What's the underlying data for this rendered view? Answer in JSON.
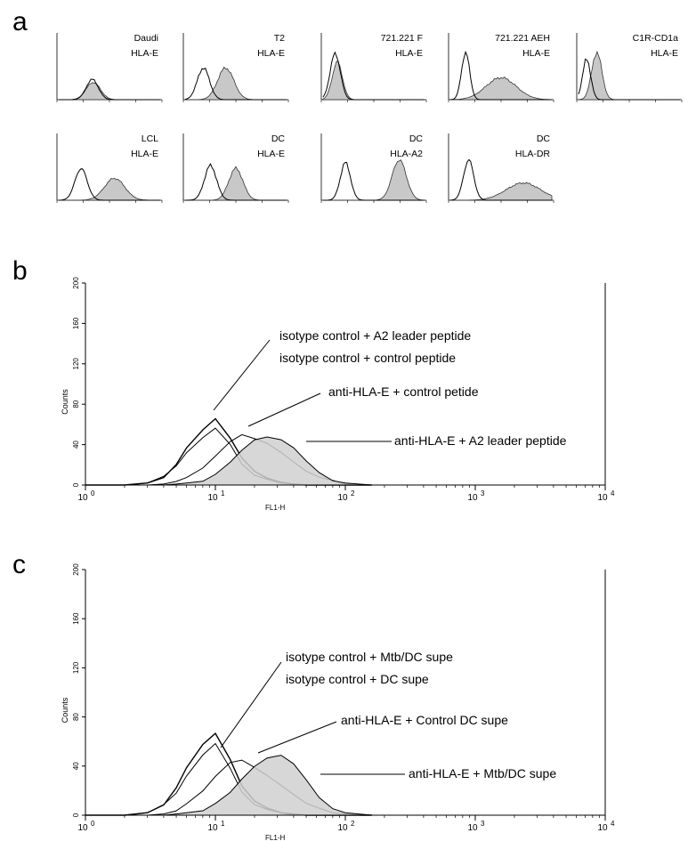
{
  "panels": {
    "a": {
      "letter": "a",
      "histograms": [
        {
          "cell": "Daudi",
          "marker": "HLA-E"
        },
        {
          "cell": "T2",
          "marker": "HLA-E"
        },
        {
          "cell": "721.221 F",
          "marker": "HLA-E"
        },
        {
          "cell": "721.221 AEH",
          "marker": "HLA-E"
        },
        {
          "cell": "C1R-CD1a",
          "marker": "HLA-E"
        },
        {
          "cell": "LCL",
          "marker": "HLA-E"
        },
        {
          "cell": "DC",
          "marker": "HLA-E"
        },
        {
          "cell": "DC",
          "marker": "HLA-A2"
        },
        {
          "cell": "DC",
          "marker": "HLA-DR"
        }
      ]
    },
    "b": {
      "letter": "b",
      "annotations": [
        "isotype control + A2 leader peptide",
        "isotype control + control peptide",
        "anti-HLA-E + control petide",
        "anti-HLA-E + A2 leader peptide"
      ]
    },
    "c": {
      "letter": "c",
      "annotations": [
        "isotype control + Mtb/DC supe",
        "isotype control + DC supe",
        "anti-HLA-E + Control DC supe",
        "anti-HLA-E + Mtb/DC supe"
      ]
    }
  },
  "chart_data": [
    {
      "type": "area",
      "panel": "b",
      "xlabel": "FL1-H",
      "ylabel": "Counts",
      "xscale": "log",
      "xlim": [
        1,
        10000
      ],
      "ylim": [
        0,
        200
      ],
      "x_ticks": [
        "10^0",
        "10^1",
        "10^2",
        "10^3",
        "10^4"
      ],
      "y_ticks": [
        0,
        40,
        80,
        120,
        160,
        200
      ],
      "x": [
        2,
        3,
        4,
        5,
        6,
        8,
        10,
        13,
        16,
        20,
        25,
        32,
        40,
        50,
        63,
        80,
        100
      ],
      "series": [
        {
          "name": "isotype control + A2 leader peptide",
          "values": [
            0,
            3,
            9,
            22,
            38,
            55,
            65,
            45,
            25,
            12,
            6,
            3,
            1,
            0,
            0,
            0,
            0
          ]
        },
        {
          "name": "isotype control + control peptide",
          "values": [
            0,
            2,
            7,
            18,
            32,
            48,
            58,
            42,
            22,
            10,
            5,
            2,
            1,
            0,
            0,
            0,
            0
          ]
        },
        {
          "name": "anti-HLA-E + control petide",
          "values": [
            0,
            0,
            1,
            3,
            6,
            15,
            27,
            42,
            50,
            47,
            43,
            34,
            24,
            14,
            7,
            3,
            1
          ]
        },
        {
          "name": "anti-HLA-E + A2 leader peptide",
          "values": [
            0,
            0,
            0,
            1,
            2,
            5,
            11,
            22,
            33,
            43,
            46,
            44,
            37,
            25,
            14,
            6,
            2
          ]
        }
      ]
    },
    {
      "type": "area",
      "panel": "c",
      "xlabel": "FL1-H",
      "ylabel": "Counts",
      "xscale": "log",
      "xlim": [
        1,
        10000
      ],
      "ylim": [
        0,
        200
      ],
      "x_ticks": [
        "10^0",
        "10^1",
        "10^2",
        "10^3",
        "10^4"
      ],
      "y_ticks": [
        0,
        40,
        80,
        120,
        160,
        200
      ],
      "x": [
        2,
        3,
        4,
        5,
        6,
        8,
        10,
        13,
        16,
        20,
        25,
        32,
        40,
        50,
        63,
        80,
        100
      ],
      "series": [
        {
          "name": "isotype control + Mtb/DC supe",
          "values": [
            0,
            3,
            10,
            24,
            40,
            58,
            66,
            44,
            22,
            10,
            5,
            2,
            1,
            0,
            0,
            0,
            0
          ]
        },
        {
          "name": "isotype control + DC supe",
          "values": [
            0,
            2,
            7,
            17,
            32,
            50,
            60,
            40,
            20,
            9,
            4,
            2,
            0,
            0,
            0,
            0,
            0
          ]
        },
        {
          "name": "anti-HLA-E + Control DC supe",
          "values": [
            0,
            0,
            1,
            3,
            8,
            18,
            30,
            42,
            45,
            40,
            34,
            26,
            18,
            10,
            5,
            2,
            1
          ]
        },
        {
          "name": "anti-HLA-E + Mtb/DC supe",
          "values": [
            0,
            0,
            0,
            1,
            2,
            5,
            10,
            18,
            28,
            38,
            45,
            48,
            42,
            30,
            16,
            7,
            2
          ]
        }
      ]
    }
  ]
}
